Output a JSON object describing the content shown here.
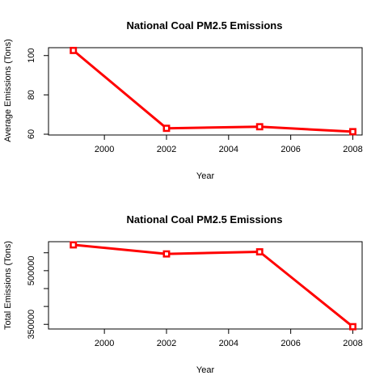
{
  "colors": {
    "series": "#ff0000"
  },
  "chart_data": [
    {
      "type": "line",
      "title": "National Coal PM2.5 Emissions",
      "xlabel": "Year",
      "ylabel": "Average Emissions (Tons)",
      "x": [
        1999,
        2002,
        2005,
        2008
      ],
      "values": [
        102.6,
        63.0,
        63.8,
        61.3
      ],
      "xlim": [
        1998.2,
        2008.3
      ],
      "ylim": [
        59.6,
        104.0
      ],
      "xticks": [
        "2000",
        "2002",
        "2004",
        "2006",
        "2008"
      ],
      "yticks": [
        "60",
        "80",
        "100"
      ],
      "grid": false,
      "markers": "open-square"
    },
    {
      "type": "line",
      "title": "National Coal PM2.5 Emissions",
      "xlabel": "Year",
      "ylabel": "Total Emissions (Tons)",
      "x": [
        1999,
        2002,
        2005,
        2008
      ],
      "values": [
        572126,
        546789,
        552675,
        343432
      ],
      "xlim": [
        1998.2,
        2008.3
      ],
      "ylim": [
        337000,
        581000
      ],
      "xticks": [
        "2000",
        "2002",
        "2004",
        "2006",
        "2008"
      ],
      "yticks": [
        "350000",
        "500000"
      ],
      "ytick_values": [
        350000,
        400000,
        450000,
        500000,
        550000
      ],
      "grid": false,
      "markers": "open-square"
    }
  ]
}
